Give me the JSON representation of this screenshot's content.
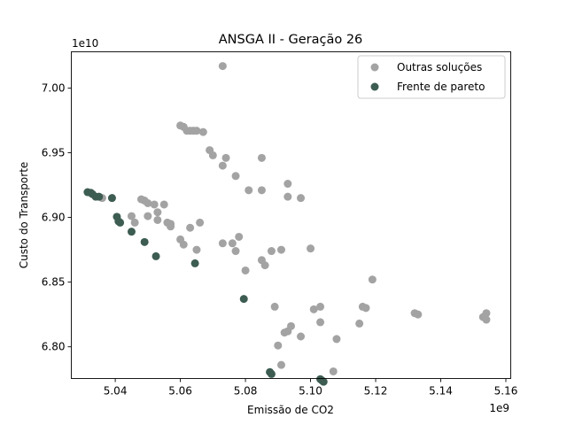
{
  "chart_data": {
    "type": "scatter",
    "title": "ANSGA II - Geração 26",
    "xlabel": "Emissão de CO2",
    "ylabel": "Custo do Transporte",
    "x_offset_text": "1e9",
    "y_offset_text": "1e10",
    "x_scale": 1000000000.0,
    "y_scale": 10000000000.0,
    "xlim": [
      5.0265,
      5.1615
    ],
    "ylim": [
      6.7755,
      7.028
    ],
    "xticks": [
      5.04,
      5.06,
      5.08,
      5.1,
      5.12,
      5.14,
      5.16
    ],
    "xtick_labels": [
      "5.04",
      "5.06",
      "5.08",
      "5.10",
      "5.12",
      "5.14",
      "5.16"
    ],
    "yticks": [
      6.8,
      6.85,
      6.9,
      6.95,
      7.0
    ],
    "ytick_labels": [
      "6.80",
      "6.85",
      "6.90",
      "6.95",
      "7.00"
    ],
    "grid": false,
    "legend_position": "top-right",
    "series": [
      {
        "name": "Outras soluções",
        "color": "#a3a3a3",
        "points": [
          [
            5.073,
            7.017
          ],
          [
            5.06,
            6.971
          ],
          [
            5.061,
            6.97
          ],
          [
            5.062,
            6.967
          ],
          [
            5.063,
            6.967
          ],
          [
            5.064,
            6.967
          ],
          [
            5.065,
            6.967
          ],
          [
            5.067,
            6.966
          ],
          [
            5.069,
            6.952
          ],
          [
            5.07,
            6.948
          ],
          [
            5.074,
            6.946
          ],
          [
            5.085,
            6.946
          ],
          [
            5.073,
            6.94
          ],
          [
            5.077,
            6.932
          ],
          [
            5.093,
            6.926
          ],
          [
            5.081,
            6.921
          ],
          [
            5.085,
            6.921
          ],
          [
            5.093,
            6.916
          ],
          [
            5.097,
            6.915
          ],
          [
            5.036,
            6.915
          ],
          [
            5.048,
            6.914
          ],
          [
            5.049,
            6.913
          ],
          [
            5.05,
            6.911
          ],
          [
            5.052,
            6.91
          ],
          [
            5.055,
            6.91
          ],
          [
            5.053,
            6.904
          ],
          [
            5.045,
            6.901
          ],
          [
            5.05,
            6.901
          ],
          [
            5.046,
            6.896
          ],
          [
            5.053,
            6.898
          ],
          [
            5.057,
            6.895
          ],
          [
            5.056,
            6.896
          ],
          [
            5.057,
            6.893
          ],
          [
            5.066,
            6.896
          ],
          [
            5.063,
            6.892
          ],
          [
            5.078,
            6.885
          ],
          [
            5.06,
            6.883
          ],
          [
            5.061,
            6.879
          ],
          [
            5.065,
            6.875
          ],
          [
            5.073,
            6.88
          ],
          [
            5.076,
            6.88
          ],
          [
            5.077,
            6.874
          ],
          [
            5.088,
            6.874
          ],
          [
            5.091,
            6.875
          ],
          [
            5.1,
            6.876
          ],
          [
            5.085,
            6.867
          ],
          [
            5.086,
            6.863
          ],
          [
            5.08,
            6.859
          ],
          [
            5.119,
            6.852
          ],
          [
            5.089,
            6.831
          ],
          [
            5.094,
            6.816
          ],
          [
            5.093,
            6.812
          ],
          [
            5.092,
            6.811
          ],
          [
            5.097,
            6.808
          ],
          [
            5.101,
            6.829
          ],
          [
            5.103,
            6.831
          ],
          [
            5.103,
            6.819
          ],
          [
            5.116,
            6.831
          ],
          [
            5.117,
            6.83
          ],
          [
            5.115,
            6.818
          ],
          [
            5.108,
            6.806
          ],
          [
            5.09,
            6.801
          ],
          [
            5.091,
            6.786
          ],
          [
            5.107,
            6.781
          ],
          [
            5.132,
            6.826
          ],
          [
            5.133,
            6.825
          ],
          [
            5.153,
            6.823
          ],
          [
            5.154,
            6.821
          ],
          [
            5.154,
            6.826
          ]
        ]
      },
      {
        "name": "Frente de pareto",
        "color": "#3d5c52",
        "points": [
          [
            5.0315,
            6.9195
          ],
          [
            5.0325,
            6.919
          ],
          [
            5.033,
            6.918
          ],
          [
            5.034,
            6.916
          ],
          [
            5.035,
            6.916
          ],
          [
            5.039,
            6.915
          ],
          [
            5.0405,
            6.9005
          ],
          [
            5.041,
            6.897
          ],
          [
            5.0415,
            6.896
          ],
          [
            5.045,
            6.889
          ],
          [
            5.049,
            6.881
          ],
          [
            5.0525,
            6.87
          ],
          [
            5.0645,
            6.8645
          ],
          [
            5.0795,
            6.837
          ],
          [
            5.0875,
            6.7805
          ],
          [
            5.088,
            6.779
          ],
          [
            5.103,
            6.775
          ],
          [
            5.1035,
            6.774
          ],
          [
            5.104,
            6.773
          ]
        ]
      }
    ]
  }
}
